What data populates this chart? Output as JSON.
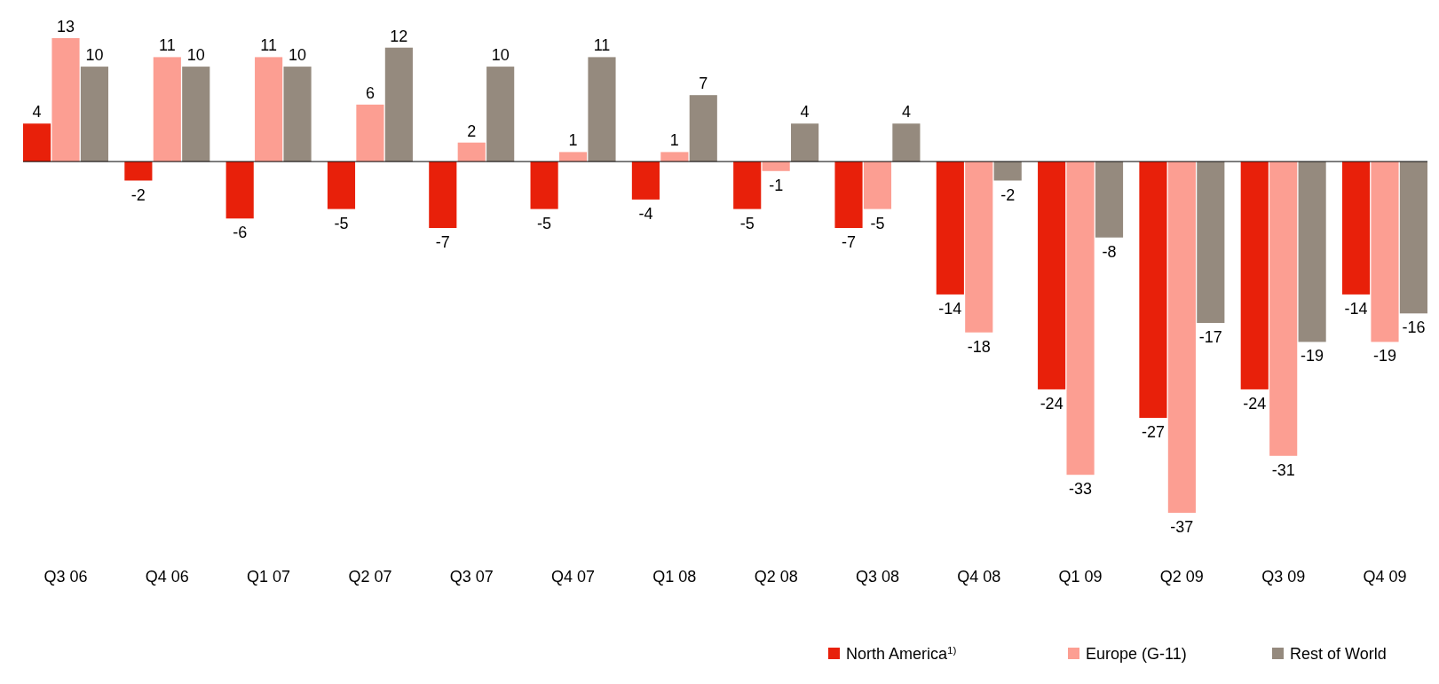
{
  "chart_data": {
    "type": "bar",
    "categories": [
      "Q3 06",
      "Q4 06",
      "Q1 07",
      "Q2 07",
      "Q3 07",
      "Q4 07",
      "Q1 08",
      "Q2 08",
      "Q3 08",
      "Q4 08",
      "Q1 09",
      "Q2 09",
      "Q3 09",
      "Q4 09"
    ],
    "series": [
      {
        "name": "North America$^{1)}$",
        "color": "#e8200a",
        "values": [
          4,
          -2,
          -6,
          -5,
          -7,
          -5,
          -4,
          -5,
          -7,
          -14,
          -24,
          -27,
          -24,
          -14
        ]
      },
      {
        "name": "Europe (G-11)",
        "color": "#fc9e92",
        "values": [
          13,
          11,
          11,
          6,
          2,
          1,
          1,
          -1,
          -5,
          -18,
          -33,
          -37,
          -31,
          -19
        ]
      },
      {
        "name": "Rest of World",
        "color": "#958a7e",
        "values": [
          10,
          10,
          10,
          12,
          10,
          11,
          7,
          4,
          4,
          -2,
          -8,
          -17,
          -19,
          -16
        ]
      }
    ],
    "data_labels": true,
    "legend": "bottom right"
  }
}
